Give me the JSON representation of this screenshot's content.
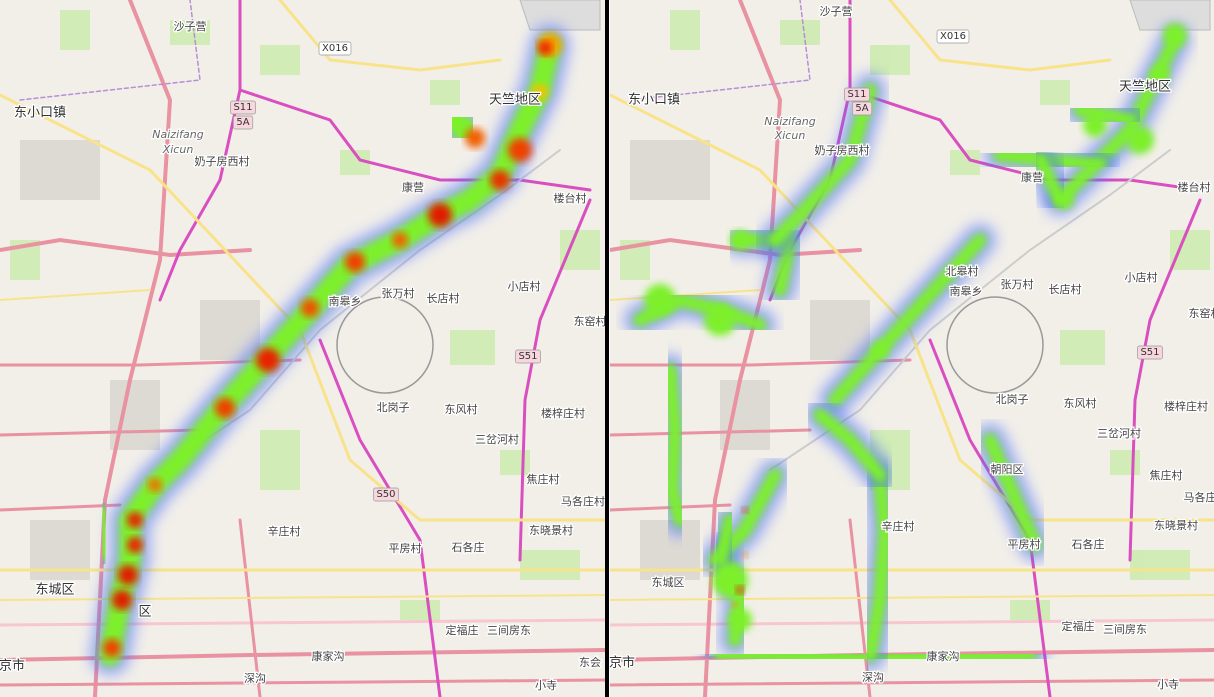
{
  "panels": [
    {
      "labels": [
        "沙子营",
        "X016",
        "S11",
        "5A",
        "东小口镇",
        "Naizifang",
        "Xicun",
        "奶子房西村",
        "天竺地区",
        "康营",
        "楼台村",
        "小店村",
        "南皋乡",
        "张万村",
        "长店村",
        "东窑村",
        "S51",
        "北岗子",
        "东风村",
        "楼梓庄村",
        "三岔河村",
        "焦庄村",
        "S50",
        "马各庄村",
        "辛庄村",
        "东晓景村",
        "平房村",
        "石各庄",
        "东城区",
        "定福庄",
        "三间房东",
        "康家沟",
        "东会",
        "深沟",
        "小寺",
        "京市",
        "区"
      ]
    },
    {
      "labels": [
        "沙子营",
        "X016",
        "S11",
        "5A",
        "东小口镇",
        "Naizifang",
        "Xicun",
        "奶子房西村",
        "天竺地区",
        "康营",
        "楼台村",
        "北皋村",
        "南皋乡",
        "张万村",
        "长店村",
        "小店村",
        "东窑村",
        "S51",
        "北岗子",
        "东风村",
        "楼梓庄村",
        "三岔河村",
        "朝阳区",
        "焦庄村",
        "马各庄",
        "东晓景村",
        "平房村",
        "石各庄",
        "东城区",
        "辛庄村",
        "定福庄",
        "三间房东",
        "康家沟",
        "深沟",
        "小寺",
        "京市"
      ]
    }
  ]
}
